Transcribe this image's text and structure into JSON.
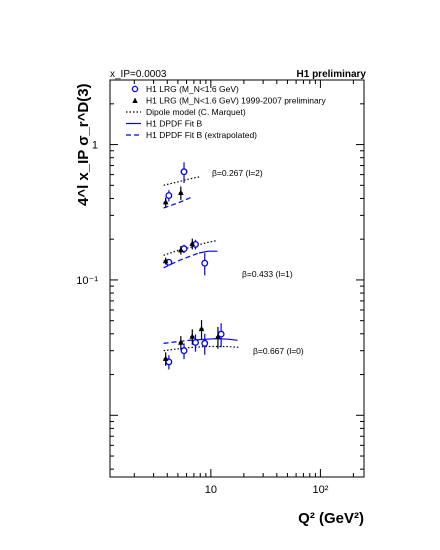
{
  "chart_data": {
    "type": "scatter",
    "title_left": "x_IP=0.0003",
    "title_right": "H1 preliminary",
    "ylabel": "4^l x_IP σ_r^D(3)",
    "xlabel": "Q² (GeV²)",
    "x_scale": "log",
    "y_scale": "log",
    "xlim": [
      1.2,
      250
    ],
    "ylim": [
      0.0035,
      3.0
    ],
    "x_tick_labels": [
      {
        "value": 10,
        "label": "10"
      },
      {
        "value": 100,
        "label": "10²"
      }
    ],
    "y_tick_labels": [
      {
        "value": 1,
        "label": "1"
      },
      {
        "value": 0.1,
        "label": "10⁻¹"
      }
    ],
    "grid": false,
    "legend_placement": "top-left",
    "legend": [
      {
        "label": "H1 LRG (M_N<1.6 GeV)",
        "marker": "open-circle",
        "color": "#0000ff"
      },
      {
        "label": "H1 LRG (M_N<1.6 GeV) 1999-2007 preliminary",
        "marker": "filled-triangle",
        "color": "#000000"
      },
      {
        "label": "Dipole model (C. Marquet)",
        "line": "dotted",
        "color": "#000000"
      },
      {
        "label": "H1 DPDF Fit B",
        "line": "solid",
        "color": "#0000ff"
      },
      {
        "label": "H1 DPDF Fit B (extrapolated)",
        "line": "dashed",
        "color": "#0000ff"
      }
    ],
    "annotations": [
      "β=0.267 (l=2)",
      "β=0.433 (l=1)",
      "β=0.667 (l=0)"
    ],
    "series": [
      {
        "name": "H1 LRG (M_N<1.6 GeV)",
        "marker": "open-circle",
        "color": "#0000ff",
        "points": [
          {
            "x": 4.0,
            "y": 0.42,
            "err": 0.04
          },
          {
            "x": 5.5,
            "y": 0.63,
            "err": 0.11
          },
          {
            "x": 4.0,
            "y": 0.135,
            "err": 0.007
          },
          {
            "x": 5.5,
            "y": 0.17,
            "err": 0.012
          },
          {
            "x": 7.0,
            "y": 0.183,
            "err": 0.015
          },
          {
            "x": 8.5,
            "y": 0.133,
            "err": 0.025
          },
          {
            "x": 4.0,
            "y": 0.0248,
            "err": 0.003
          },
          {
            "x": 5.5,
            "y": 0.03,
            "err": 0.004
          },
          {
            "x": 7.0,
            "y": 0.0345,
            "err": 0.005
          },
          {
            "x": 8.5,
            "y": 0.034,
            "err": 0.006
          },
          {
            "x": 12.0,
            "y": 0.0398,
            "err": 0.008
          }
        ]
      },
      {
        "name": "H1 LRG (M_N<1.6 GeV) 1999-2007 preliminary",
        "marker": "filled-triangle",
        "color": "#000000",
        "points": [
          {
            "x": 4.0,
            "y": 0.375,
            "err": 0.03
          },
          {
            "x": 5.5,
            "y": 0.44,
            "err": 0.05
          },
          {
            "x": 4.0,
            "y": 0.138,
            "err": 0.008
          },
          {
            "x": 5.5,
            "y": 0.166,
            "err": 0.012
          },
          {
            "x": 7.0,
            "y": 0.185,
            "err": 0.017
          },
          {
            "x": 4.0,
            "y": 0.0262,
            "err": 0.003
          },
          {
            "x": 5.5,
            "y": 0.0345,
            "err": 0.004
          },
          {
            "x": 7.0,
            "y": 0.0382,
            "err": 0.005
          },
          {
            "x": 8.5,
            "y": 0.0435,
            "err": 0.007
          },
          {
            "x": 12.0,
            "y": 0.038,
            "err": 0.007
          }
        ]
      }
    ],
    "curves": [
      {
        "group": "β=0.267 (l=2)",
        "style": "dotted",
        "color": "#000000",
        "points": [
          [
            3.7,
            0.5
          ],
          [
            5.0,
            0.53
          ],
          [
            6.5,
            0.56
          ],
          [
            8.0,
            0.58
          ]
        ]
      },
      {
        "group": "β=0.267 (l=2)",
        "style": "dashed",
        "color": "#0000ff",
        "points": [
          [
            3.7,
            0.34
          ],
          [
            5.0,
            0.37
          ],
          [
            6.5,
            0.405
          ]
        ]
      },
      {
        "group": "β=0.433 (l=1)",
        "style": "dotted",
        "color": "#000000",
        "points": [
          [
            3.7,
            0.152
          ],
          [
            5.0,
            0.165
          ],
          [
            7.0,
            0.177
          ],
          [
            9.0,
            0.188
          ],
          [
            11.5,
            0.196
          ]
        ]
      },
      {
        "group": "β=0.433 (l=1)",
        "style": "dashed",
        "color": "#0000ff",
        "points": [
          [
            3.7,
            0.123
          ],
          [
            5.0,
            0.138
          ],
          [
            6.5,
            0.15
          ],
          [
            7.8,
            0.158
          ]
        ]
      },
      {
        "group": "β=0.433 (l=1)",
        "style": "solid",
        "color": "#0000ff",
        "points": [
          [
            7.8,
            0.158
          ],
          [
            9.5,
            0.163
          ],
          [
            11.5,
            0.163
          ]
        ]
      },
      {
        "group": "β=0.667 (l=0)",
        "style": "dotted",
        "color": "#000000",
        "points": [
          [
            3.7,
            0.03
          ],
          [
            6.0,
            0.0315
          ],
          [
            9.0,
            0.0322
          ],
          [
            14.0,
            0.0322
          ],
          [
            18.0,
            0.0318
          ]
        ]
      },
      {
        "group": "β=0.667 (l=0)",
        "style": "dashed",
        "color": "#0000ff",
        "points": [
          [
            3.7,
            0.034
          ],
          [
            5.0,
            0.035
          ],
          [
            6.8,
            0.036
          ],
          [
            7.8,
            0.0362
          ]
        ]
      },
      {
        "group": "β=0.667 (l=0)",
        "style": "solid",
        "color": "#0000ff",
        "points": [
          [
            7.8,
            0.0362
          ],
          [
            11.0,
            0.0368
          ],
          [
            14.5,
            0.0365
          ],
          [
            17.5,
            0.0358
          ]
        ]
      }
    ]
  }
}
